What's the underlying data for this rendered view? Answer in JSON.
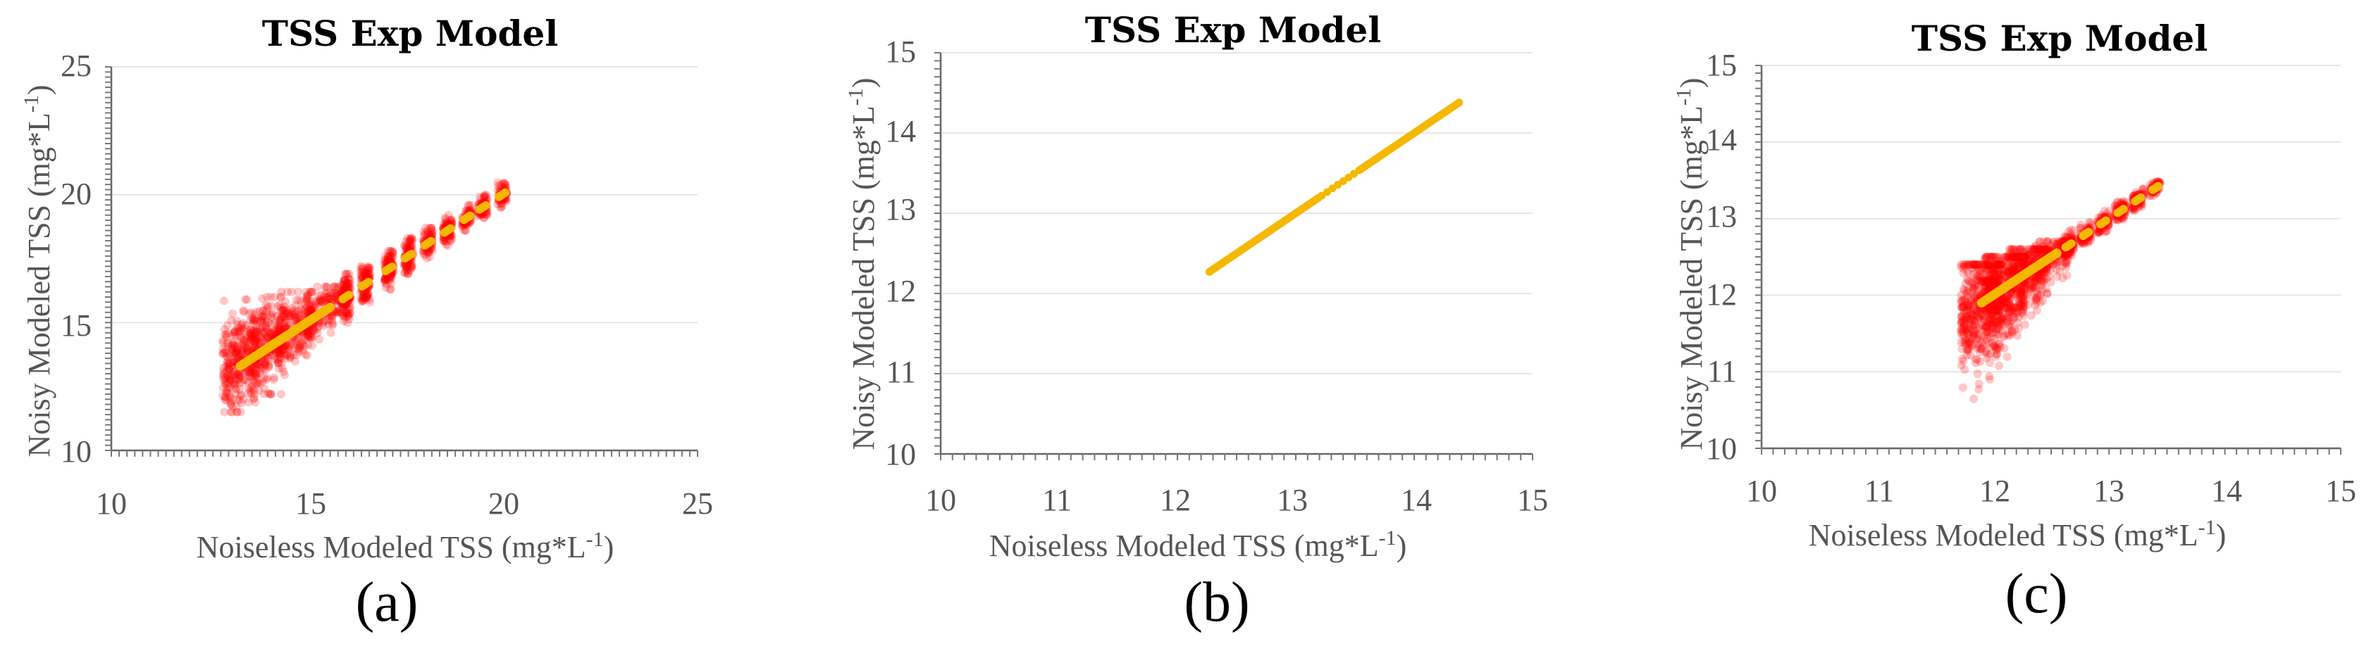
{
  "chart_data": [
    {
      "type": "scatter",
      "panel_label": "(a)",
      "title": "TSS Exp Model",
      "xlabel": "Noiseless Modeled TSS (mg*L",
      "xlabel_sup": "-1",
      "xlabel_end": ")",
      "ylabel": "Noisy Modeled TSS (mg*L",
      "ylabel_sup": "-1",
      "ylabel_end": ")",
      "xlim": [
        10,
        25
      ],
      "ylim": [
        10,
        25
      ],
      "xticks": [
        "10",
        "15",
        "20",
        "25"
      ],
      "yticks": [
        "10",
        "15",
        "20",
        "25"
      ],
      "grid": true,
      "series": [
        {
          "name": "noisy",
          "color": "#ff0000",
          "clusters": [
            {
              "x": 13.3,
              "y": 13.5,
              "ylow": 11.5,
              "yhigh": 15.9
            },
            {
              "x": 14.0,
              "y": 14.1,
              "ylow": 12.2,
              "yhigh": 16.0
            },
            {
              "x": 14.7,
              "y": 14.8,
              "ylow": 13.2,
              "yhigh": 16.2
            },
            {
              "x": 15.4,
              "y": 15.4,
              "ylow": 14.2,
              "yhigh": 16.4
            },
            {
              "x": 16.0,
              "y": 16.0,
              "ylow": 15.0,
              "yhigh": 16.9
            },
            {
              "x": 16.5,
              "y": 16.5,
              "ylow": 15.6,
              "yhigh": 17.2
            },
            {
              "x": 17.1,
              "y": 17.1,
              "ylow": 16.3,
              "yhigh": 17.8
            },
            {
              "x": 17.6,
              "y": 17.6,
              "ylow": 16.9,
              "yhigh": 18.3
            },
            {
              "x": 18.1,
              "y": 18.1,
              "ylow": 17.5,
              "yhigh": 18.7
            },
            {
              "x": 18.6,
              "y": 18.6,
              "ylow": 18.0,
              "yhigh": 19.2
            },
            {
              "x": 19.1,
              "y": 19.1,
              "ylow": 18.6,
              "yhigh": 19.6
            },
            {
              "x": 19.5,
              "y": 19.5,
              "ylow": 19.0,
              "yhigh": 20.0
            },
            {
              "x": 20.0,
              "y": 20.0,
              "ylow": 19.5,
              "yhigh": 20.5
            }
          ]
        },
        {
          "name": "noiseless",
          "color": "#f5b800",
          "line": [
            [
              13.3,
              13.3
            ],
            [
              15.6,
              15.6
            ]
          ]
        }
      ]
    },
    {
      "type": "scatter",
      "panel_label": "(b)",
      "title": "TSS Exp Model",
      "xlabel": "Noiseless Modeled TSS (mg*L",
      "xlabel_sup": "-1",
      "xlabel_end": ")",
      "ylabel": "Noisy Modeled TSS (mg*L",
      "ylabel_sup": "-1",
      "ylabel_end": ")",
      "xlim": [
        10,
        15
      ],
      "ylim": [
        10,
        15
      ],
      "xticks": [
        "10",
        "11",
        "12",
        "13",
        "14",
        "15"
      ],
      "yticks": [
        "10",
        "11",
        "12",
        "13",
        "14",
        "15"
      ],
      "grid": true,
      "series": [
        {
          "name": "noiseless",
          "color": "#f5b800",
          "range": [
            12.27,
            14.38
          ]
        }
      ]
    },
    {
      "type": "scatter",
      "panel_label": "(c)",
      "title": "TSS Exp Model",
      "xlabel": "Noiseless Modeled TSS (mg*L",
      "xlabel_sup": "-1",
      "xlabel_end": ")",
      "ylabel": "Noisy Modeled TSS (mg*L",
      "ylabel_sup": "-1",
      "ylabel_end": ")",
      "xlim": [
        10,
        15
      ],
      "ylim": [
        10,
        15
      ],
      "xticks": [
        "10",
        "11",
        "12",
        "13",
        "14",
        "15"
      ],
      "yticks": [
        "10",
        "11",
        "12",
        "13",
        "14",
        "15"
      ],
      "grid": true,
      "series": [
        {
          "name": "noisy",
          "color": "#ff0000",
          "clusters": [
            {
              "x": 11.9,
              "y": 11.9,
              "ylow": 10.6,
              "yhigh": 12.4
            },
            {
              "x": 12.1,
              "y": 12.1,
              "ylow": 10.9,
              "yhigh": 12.5
            },
            {
              "x": 12.3,
              "y": 12.3,
              "ylow": 11.5,
              "yhigh": 12.6
            },
            {
              "x": 12.5,
              "y": 12.5,
              "ylow": 12.0,
              "yhigh": 12.7
            },
            {
              "x": 12.65,
              "y": 12.65,
              "ylow": 12.5,
              "yhigh": 12.85
            },
            {
              "x": 12.8,
              "y": 12.8,
              "ylow": 12.65,
              "yhigh": 12.95
            },
            {
              "x": 12.95,
              "y": 12.95,
              "ylow": 12.8,
              "yhigh": 13.1
            },
            {
              "x": 13.1,
              "y": 13.1,
              "ylow": 12.95,
              "yhigh": 13.25
            },
            {
              "x": 13.25,
              "y": 13.25,
              "ylow": 13.1,
              "yhigh": 13.4
            },
            {
              "x": 13.4,
              "y": 13.4,
              "ylow": 13.3,
              "yhigh": 13.5
            }
          ]
        },
        {
          "name": "noiseless",
          "color": "#f5b800",
          "line": [
            [
              11.9,
              11.9
            ],
            [
              12.55,
              12.55
            ]
          ]
        }
      ]
    }
  ]
}
